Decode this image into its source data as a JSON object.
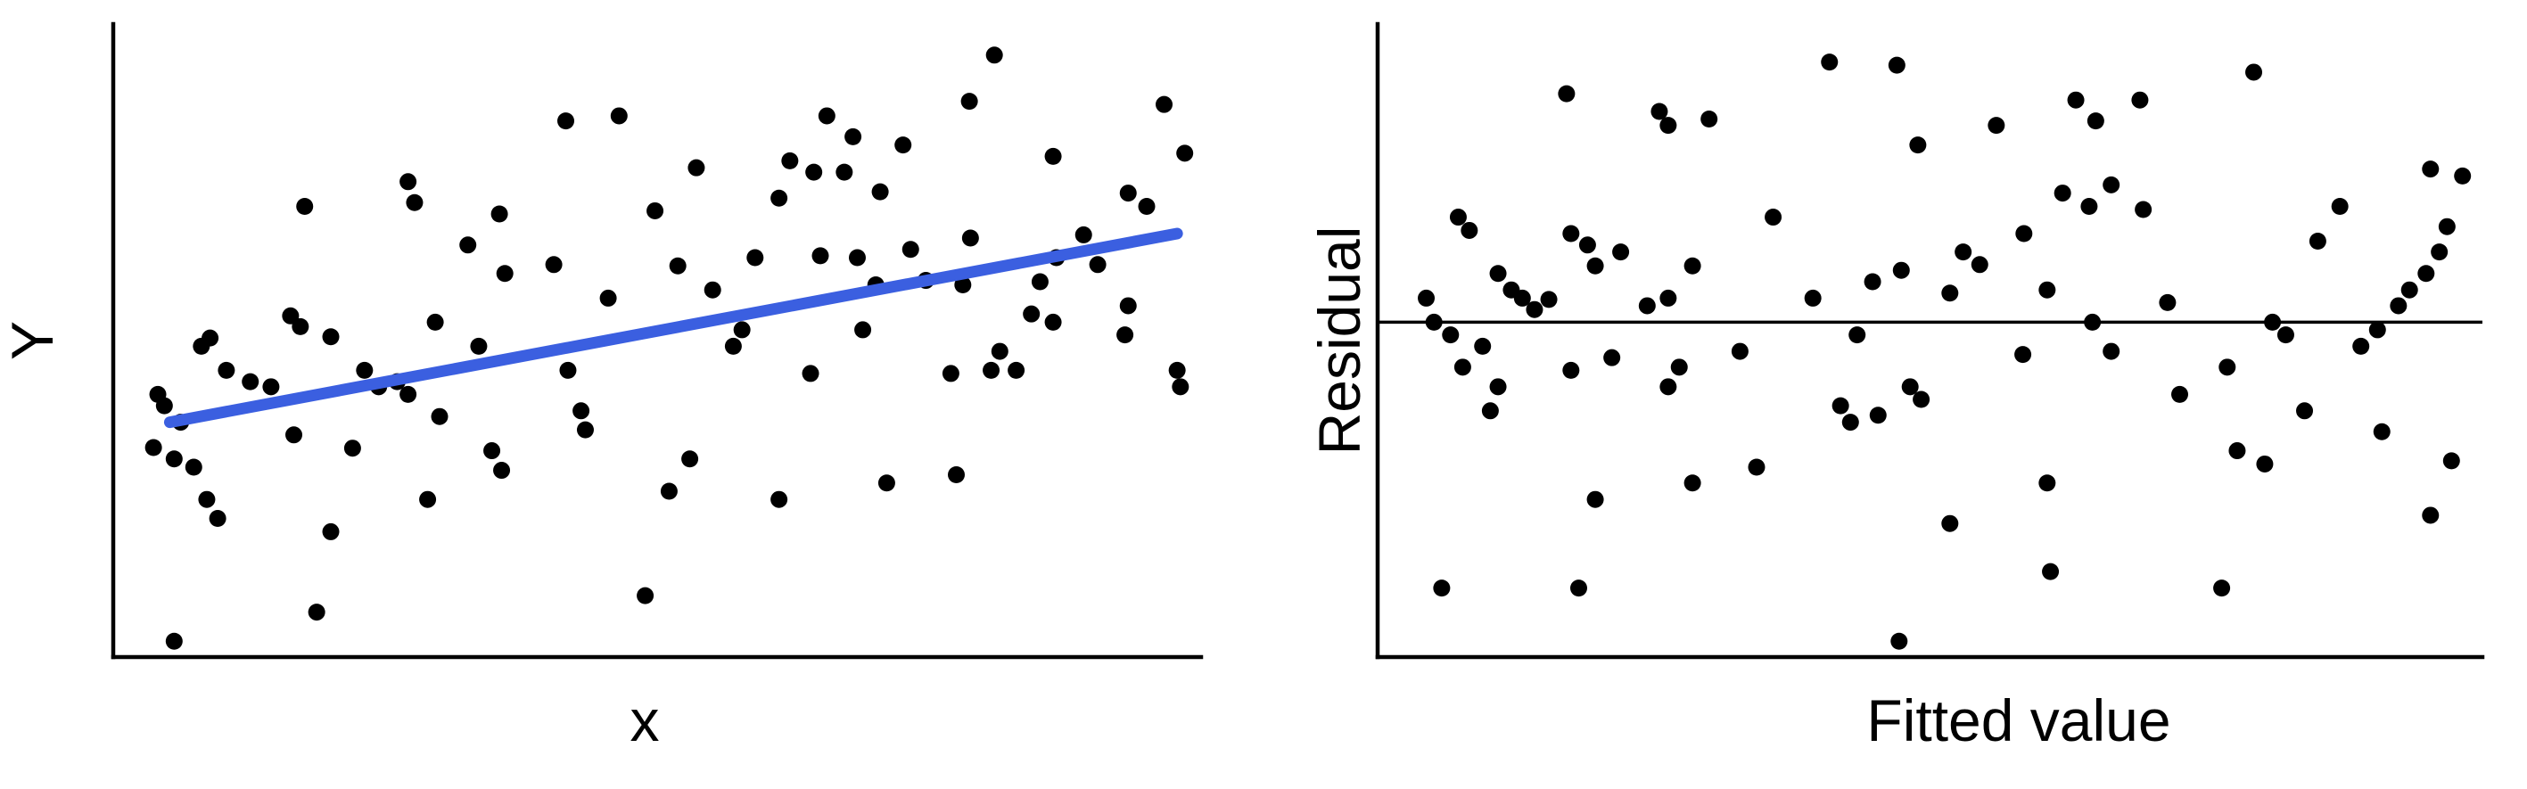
{
  "figure": {
    "background": "#ffffff",
    "dot_color": "#000000",
    "axis_color": "#000000",
    "fit_line_color": "#3B5FE0"
  },
  "chart_data": [
    {
      "type": "scatter",
      "title": "",
      "xlabel": "x",
      "ylabel": "Y",
      "x_range": [
        0,
        1
      ],
      "y_range": [
        0,
        1
      ],
      "grid": false,
      "legend": false,
      "axis_tick_labels": false,
      "fit_line": {
        "x1": 0.052,
        "y1": 0.371,
        "x2": 0.978,
        "y2": 0.669
      },
      "points": [
        [
          0.056,
          0.025
        ],
        [
          0.037,
          0.331
        ],
        [
          0.041,
          0.415
        ],
        [
          0.047,
          0.397
        ],
        [
          0.056,
          0.313
        ],
        [
          0.062,
          0.371
        ],
        [
          0.074,
          0.3
        ],
        [
          0.081,
          0.491
        ],
        [
          0.086,
          0.249
        ],
        [
          0.089,
          0.504
        ],
        [
          0.096,
          0.219
        ],
        [
          0.104,
          0.453
        ],
        [
          0.126,
          0.435
        ],
        [
          0.145,
          0.427
        ],
        [
          0.163,
          0.539
        ],
        [
          0.172,
          0.522
        ],
        [
          0.166,
          0.351
        ],
        [
          0.176,
          0.712
        ],
        [
          0.187,
          0.071
        ],
        [
          0.2,
          0.506
        ],
        [
          0.2,
          0.198
        ],
        [
          0.22,
          0.33
        ],
        [
          0.231,
          0.453
        ],
        [
          0.244,
          0.427
        ],
        [
          0.261,
          0.435
        ],
        [
          0.271,
          0.751
        ],
        [
          0.277,
          0.718
        ],
        [
          0.271,
          0.415
        ],
        [
          0.289,
          0.249
        ],
        [
          0.296,
          0.529
        ],
        [
          0.3,
          0.38
        ],
        [
          0.326,
          0.651
        ],
        [
          0.336,
          0.491
        ],
        [
          0.348,
          0.326
        ],
        [
          0.355,
          0.7
        ],
        [
          0.357,
          0.295
        ],
        [
          0.36,
          0.606
        ],
        [
          0.405,
          0.62
        ],
        [
          0.416,
          0.847
        ],
        [
          0.418,
          0.453
        ],
        [
          0.43,
          0.389
        ],
        [
          0.434,
          0.359
        ],
        [
          0.455,
          0.567
        ],
        [
          0.465,
          0.855
        ],
        [
          0.489,
          0.097
        ],
        [
          0.498,
          0.705
        ],
        [
          0.511,
          0.262
        ],
        [
          0.519,
          0.618
        ],
        [
          0.53,
          0.313
        ],
        [
          0.536,
          0.773
        ],
        [
          0.551,
          0.58
        ],
        [
          0.57,
          0.491
        ],
        [
          0.578,
          0.517
        ],
        [
          0.59,
          0.631
        ],
        [
          0.612,
          0.725
        ],
        [
          0.612,
          0.249
        ],
        [
          0.622,
          0.784
        ],
        [
          0.641,
          0.448
        ],
        [
          0.644,
          0.766
        ],
        [
          0.65,
          0.634
        ],
        [
          0.656,
          0.855
        ],
        [
          0.672,
          0.766
        ],
        [
          0.68,
          0.822
        ],
        [
          0.684,
          0.631
        ],
        [
          0.689,
          0.517
        ],
        [
          0.701,
          0.588
        ],
        [
          0.705,
          0.735
        ],
        [
          0.711,
          0.275
        ],
        [
          0.726,
          0.809
        ],
        [
          0.733,
          0.644
        ],
        [
          0.747,
          0.595
        ],
        [
          0.77,
          0.448
        ],
        [
          0.775,
          0.288
        ],
        [
          0.781,
          0.588
        ],
        [
          0.787,
          0.878
        ],
        [
          0.788,
          0.662
        ],
        [
          0.807,
          0.453
        ],
        [
          0.81,
          0.951
        ],
        [
          0.815,
          0.483
        ],
        [
          0.83,
          0.453
        ],
        [
          0.844,
          0.542
        ],
        [
          0.852,
          0.593
        ],
        [
          0.864,
          0.791
        ],
        [
          0.864,
          0.529
        ],
        [
          0.867,
          0.631
        ],
        [
          0.892,
          0.667
        ],
        [
          0.905,
          0.62
        ],
        [
          0.93,
          0.509
        ],
        [
          0.933,
          0.733
        ],
        [
          0.933,
          0.555
        ],
        [
          0.95,
          0.712
        ],
        [
          0.966,
          0.873
        ],
        [
          0.978,
          0.453
        ],
        [
          0.981,
          0.427
        ],
        [
          0.985,
          0.796
        ]
      ]
    },
    {
      "type": "scatter",
      "title": "",
      "xlabel": "Fitted value",
      "ylabel": "Residual",
      "x_range": [
        0,
        1
      ],
      "y_range": [
        0,
        1
      ],
      "grid": false,
      "legend": false,
      "axis_tick_labels": false,
      "zero_line_y": 0.529,
      "points": [
        [
          0.044,
          0.567
        ],
        [
          0.051,
          0.529
        ],
        [
          0.058,
          0.109
        ],
        [
          0.066,
          0.509
        ],
        [
          0.073,
          0.695
        ],
        [
          0.077,
          0.458
        ],
        [
          0.083,
          0.674
        ],
        [
          0.095,
          0.491
        ],
        [
          0.102,
          0.389
        ],
        [
          0.109,
          0.606
        ],
        [
          0.109,
          0.427
        ],
        [
          0.121,
          0.58
        ],
        [
          0.131,
          0.567
        ],
        [
          0.142,
          0.549
        ],
        [
          0.155,
          0.565
        ],
        [
          0.171,
          0.89
        ],
        [
          0.175,
          0.669
        ],
        [
          0.175,
          0.453
        ],
        [
          0.182,
          0.109
        ],
        [
          0.19,
          0.651
        ],
        [
          0.197,
          0.618
        ],
        [
          0.197,
          0.249
        ],
        [
          0.212,
          0.473
        ],
        [
          0.22,
          0.64
        ],
        [
          0.244,
          0.555
        ],
        [
          0.255,
          0.862
        ],
        [
          0.263,
          0.84
        ],
        [
          0.263,
          0.567
        ],
        [
          0.263,
          0.427
        ],
        [
          0.273,
          0.458
        ],
        [
          0.285,
          0.618
        ],
        [
          0.285,
          0.275
        ],
        [
          0.3,
          0.85
        ],
        [
          0.328,
          0.483
        ],
        [
          0.343,
          0.3
        ],
        [
          0.358,
          0.695
        ],
        [
          0.394,
          0.567
        ],
        [
          0.409,
          0.94
        ],
        [
          0.419,
          0.397
        ],
        [
          0.428,
          0.371
        ],
        [
          0.434,
          0.509
        ],
        [
          0.448,
          0.593
        ],
        [
          0.453,
          0.382
        ],
        [
          0.47,
          0.935
        ],
        [
          0.472,
          0.025
        ],
        [
          0.474,
          0.611
        ],
        [
          0.482,
          0.427
        ],
        [
          0.489,
          0.809
        ],
        [
          0.492,
          0.407
        ],
        [
          0.518,
          0.575
        ],
        [
          0.518,
          0.211
        ],
        [
          0.53,
          0.64
        ],
        [
          0.545,
          0.62
        ],
        [
          0.56,
          0.84
        ],
        [
          0.584,
          0.478
        ],
        [
          0.585,
          0.669
        ],
        [
          0.606,
          0.58
        ],
        [
          0.606,
          0.275
        ],
        [
          0.609,
          0.135
        ],
        [
          0.62,
          0.733
        ],
        [
          0.632,
          0.88
        ],
        [
          0.644,
          0.712
        ],
        [
          0.647,
          0.529
        ],
        [
          0.65,
          0.847
        ],
        [
          0.664,
          0.746
        ],
        [
          0.664,
          0.483
        ],
        [
          0.69,
          0.88
        ],
        [
          0.693,
          0.707
        ],
        [
          0.715,
          0.56
        ],
        [
          0.726,
          0.415
        ],
        [
          0.764,
          0.109
        ],
        [
          0.769,
          0.458
        ],
        [
          0.778,
          0.326
        ],
        [
          0.793,
          0.924
        ],
        [
          0.803,
          0.305
        ],
        [
          0.81,
          0.529
        ],
        [
          0.822,
          0.509
        ],
        [
          0.839,
          0.389
        ],
        [
          0.851,
          0.657
        ],
        [
          0.871,
          0.712
        ],
        [
          0.89,
          0.491
        ],
        [
          0.905,
          0.517
        ],
        [
          0.909,
          0.356
        ],
        [
          0.924,
          0.555
        ],
        [
          0.934,
          0.58
        ],
        [
          0.949,
          0.606
        ],
        [
          0.953,
          0.771
        ],
        [
          0.953,
          0.224
        ],
        [
          0.961,
          0.64
        ],
        [
          0.968,
          0.68
        ],
        [
          0.972,
          0.31
        ],
        [
          0.982,
          0.76
        ]
      ]
    }
  ]
}
